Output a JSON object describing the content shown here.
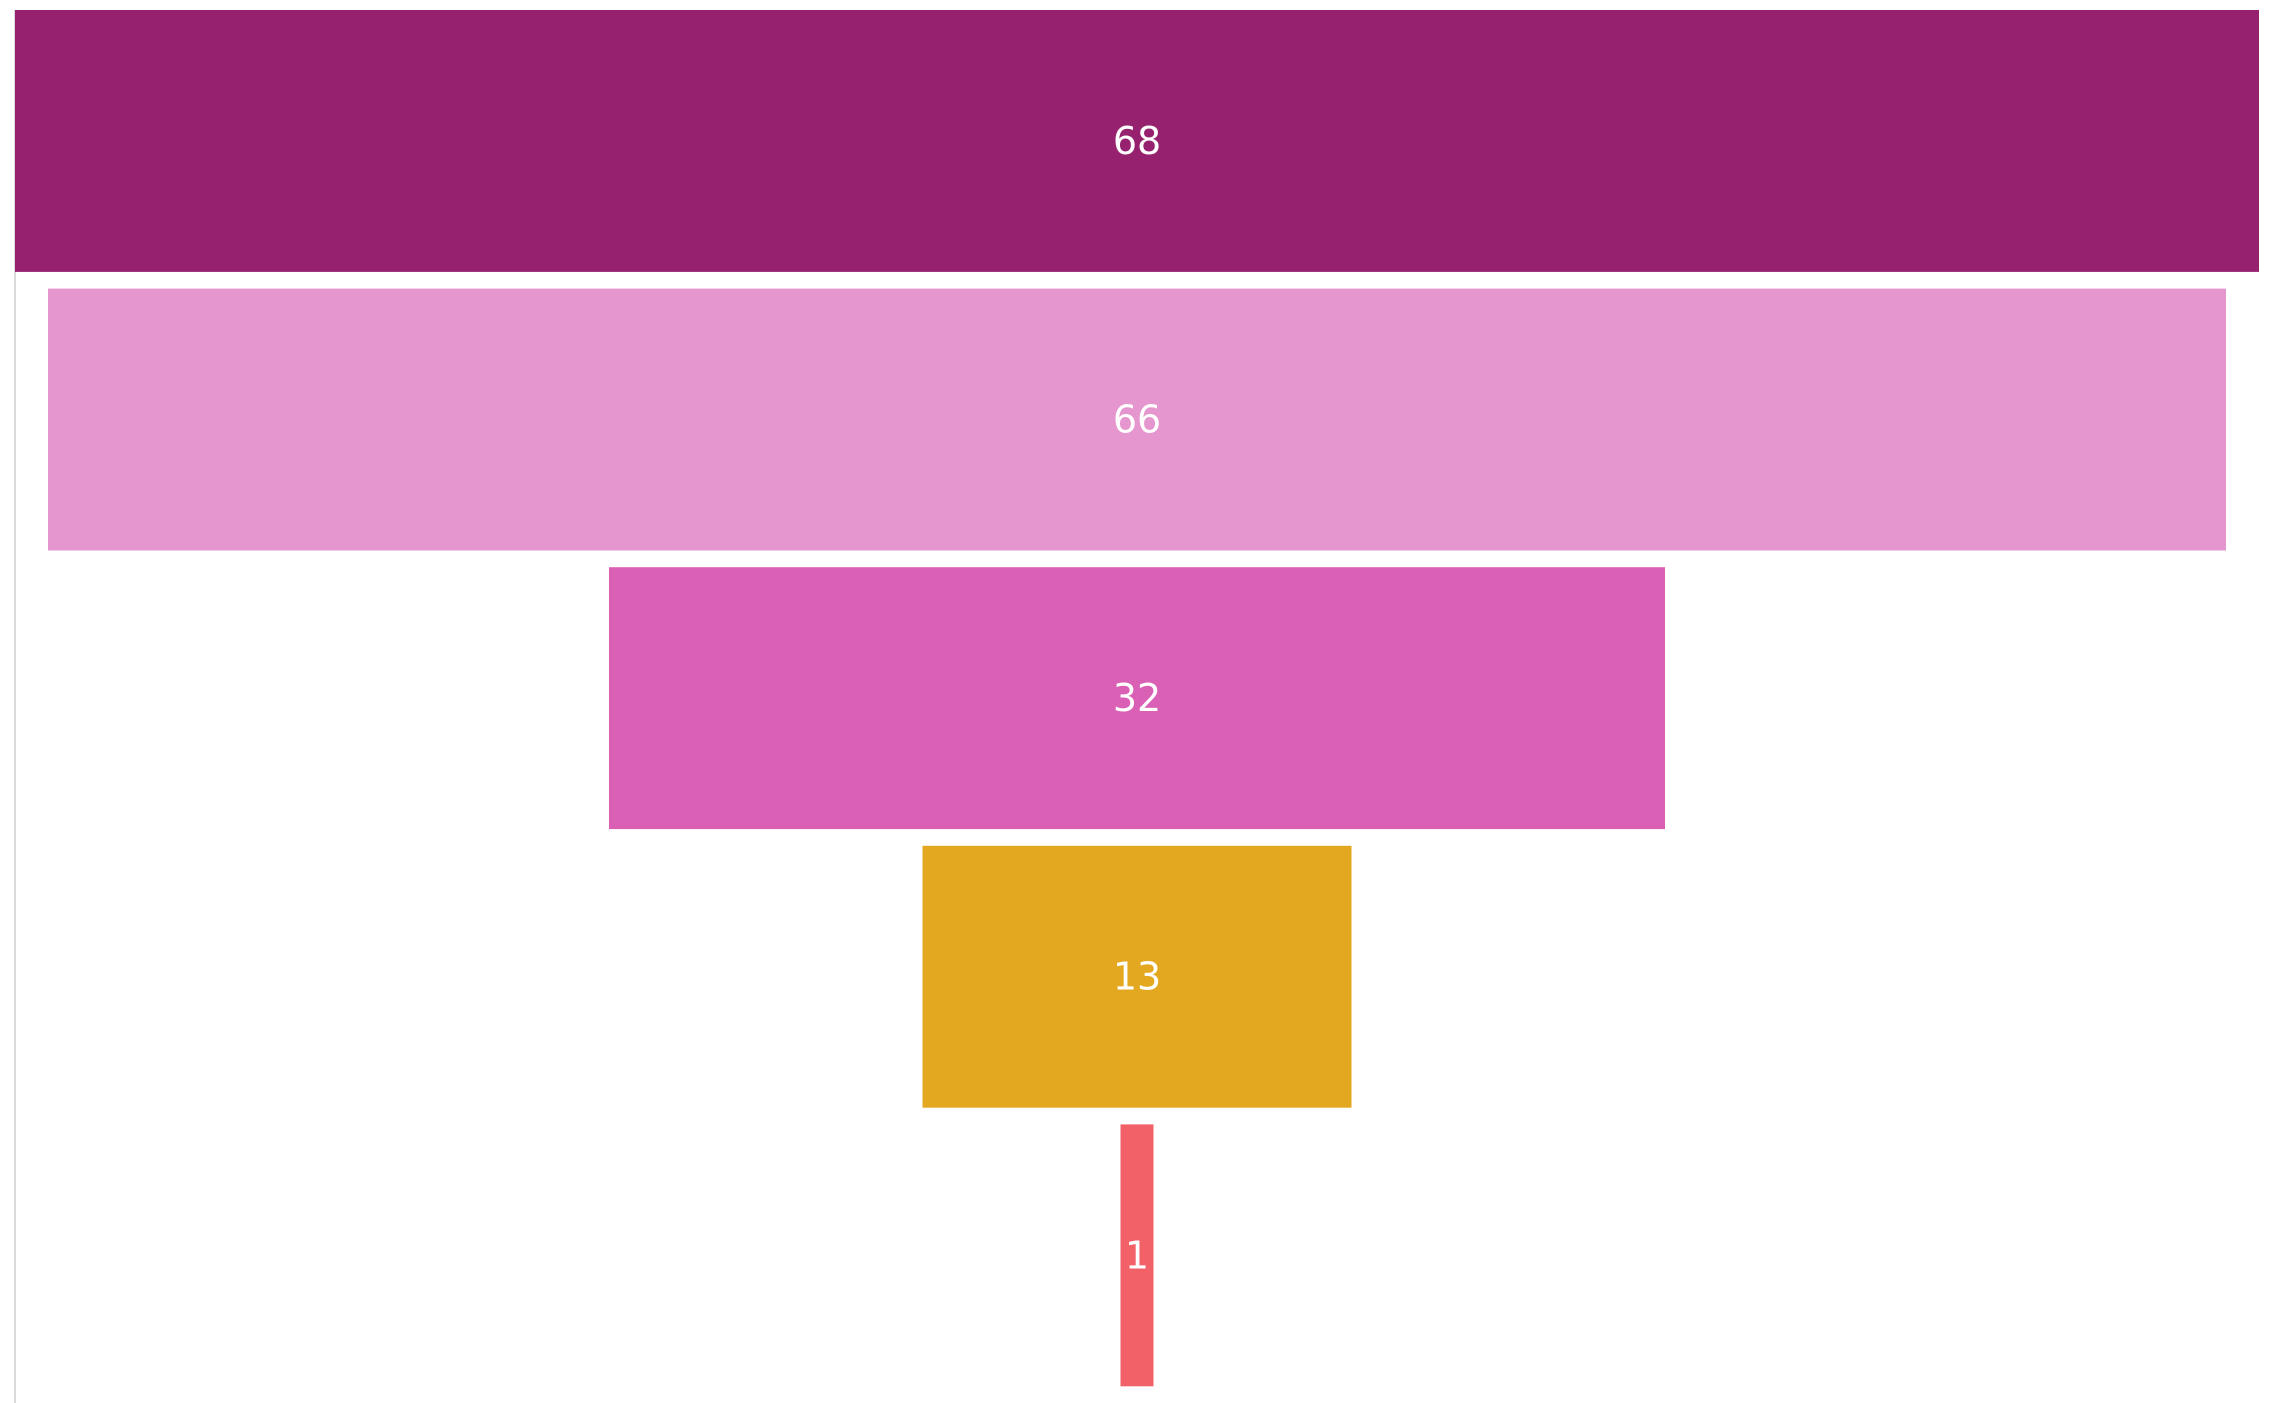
{
  "chart_data": {
    "type": "bar",
    "orientation": "horizontal",
    "style": "funnel",
    "categories": [
      "",
      "",
      "",
      "",
      ""
    ],
    "values": [
      68,
      66,
      32,
      13,
      1
    ],
    "data_labels": [
      "68",
      "66",
      "32",
      "13",
      "1"
    ],
    "colors": [
      "#96226F",
      "#E596CE",
      "#D960B4",
      "#E4A820",
      "#F26168"
    ],
    "label_color": "#FFFFFF",
    "axis_color": "#D9D9D9",
    "grid": false,
    "legend": "none",
    "title": "",
    "xlabel": "",
    "ylabel": ""
  }
}
